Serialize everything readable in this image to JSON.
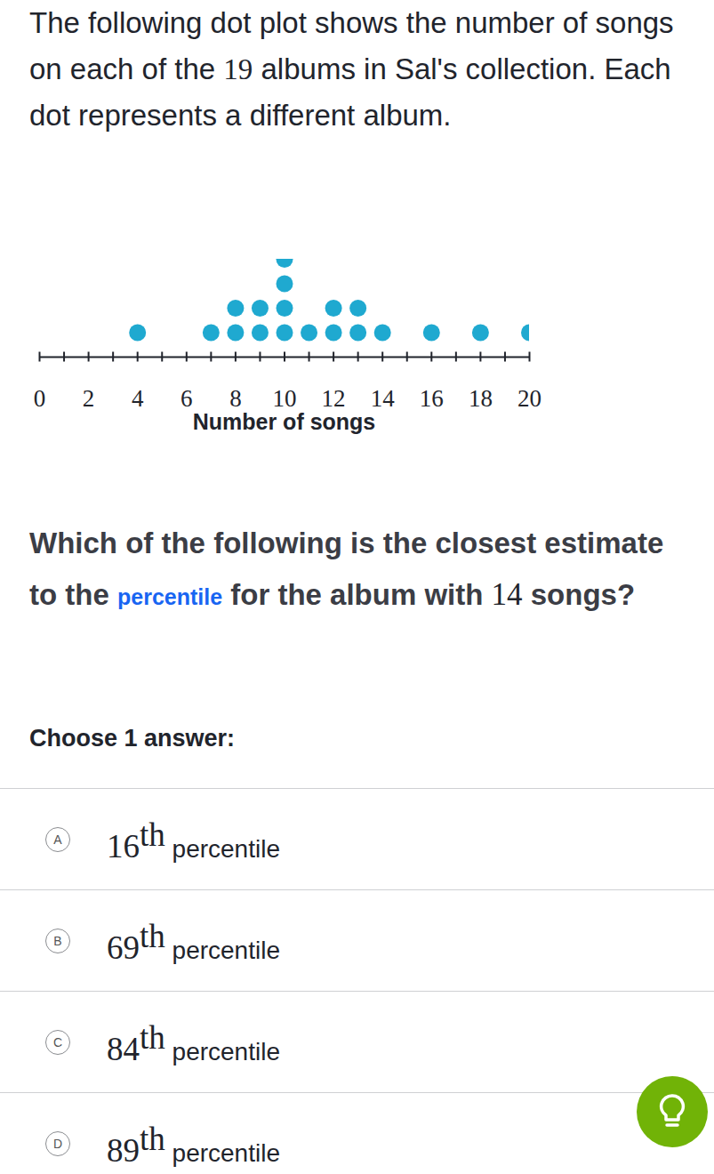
{
  "chart_data": {
    "type": "dot",
    "xlabel": "Number of songs",
    "values": [
      4,
      7,
      8,
      8,
      9,
      9,
      10,
      10,
      10,
      10,
      11,
      12,
      12,
      13,
      13,
      14,
      16,
      18,
      20
    ],
    "color": "#1fa9d0",
    "xlim": [
      0,
      20
    ],
    "xticks": [
      0,
      {
        "value": 1,
        "label": null
      },
      2,
      {
        "value": 3,
        "label": null
      },
      4,
      {
        "value": 5,
        "label": null
      },
      6,
      {
        "value": 7,
        "label": null
      },
      8,
      {
        "value": 9,
        "label": null
      },
      10,
      {
        "value": 11,
        "label": null
      },
      12,
      {
        "value": 13,
        "label": null
      },
      14,
      {
        "value": 15,
        "label": null
      },
      16,
      {
        "value": 17,
        "label": null
      },
      18,
      {
        "value": 19,
        "label": null
      },
      20
    ]
  },
  "page": {
    "intro": "The following dot plot shows the number of songs on each of the 19 albums in Sal's collection. Each dot represents a different album.",
    "question_before": "Which of the following is the closest estimate to the ",
    "question_link": "percentile",
    "question_after": " for the album with 14 songs?",
    "choose": "Choose 1 answer:",
    "answers": [
      {
        "letter": "A",
        "number": "16",
        "suffix": "th",
        "text": "percentile"
      },
      {
        "letter": "B",
        "number": "69",
        "suffix": "th",
        "text": "percentile"
      },
      {
        "letter": "C",
        "number": "84",
        "suffix": "th",
        "text": "percentile"
      },
      {
        "letter": "D",
        "number": "89",
        "suffix": "th",
        "text": "percentile"
      }
    ]
  }
}
